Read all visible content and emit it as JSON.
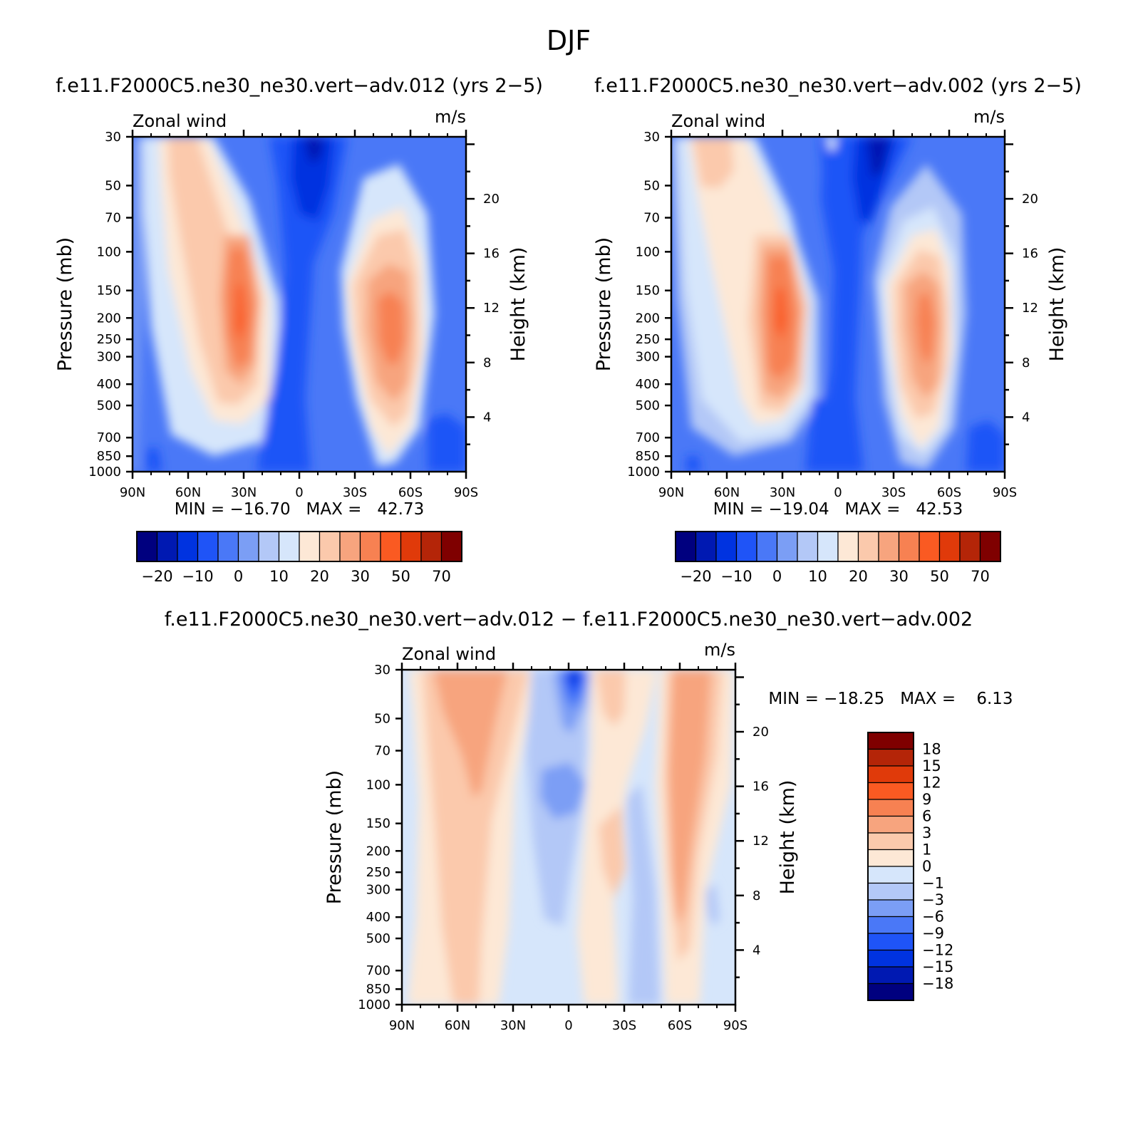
{
  "figure": {
    "title": "DJF"
  },
  "chart_data": [
    {
      "type": "heatmap",
      "title": "f.e11.F2000C5.ne30_ne30.vert−adv.012 (yrs 2−5)",
      "left_label": "Zonal wind",
      "right_label": "m/s",
      "xlabel": "",
      "ylabel": "Pressure (mb)",
      "y2label": "Height (km)",
      "x_ticks": [
        "90N",
        "60N",
        "30N",
        "0",
        "30S",
        "60S",
        "90S"
      ],
      "y_ticks": [
        "30",
        "50",
        "70",
        "100",
        "150",
        "200",
        "250",
        "300",
        "400",
        "500",
        "700",
        "850",
        "1000"
      ],
      "y2_ticks": [
        "20",
        "16",
        "12",
        "8",
        "4"
      ],
      "ylim": [
        1000,
        30
      ],
      "stats": "MIN = −16.70   MAX =   42.73",
      "min": -16.7,
      "max": 42.73,
      "colorbar": {
        "orientation": "horizontal",
        "labels": [
          "−20",
          "−10",
          "0",
          "10",
          "20",
          "30",
          "50",
          "70"
        ]
      }
    },
    {
      "type": "heatmap",
      "title": "f.e11.F2000C5.ne30_ne30.vert−adv.002 (yrs 2−5)",
      "left_label": "Zonal wind",
      "right_label": "m/s",
      "xlabel": "",
      "ylabel": "Pressure (mb)",
      "y2label": "Height (km)",
      "x_ticks": [
        "90N",
        "60N",
        "30N",
        "0",
        "30S",
        "60S",
        "90S"
      ],
      "y_ticks": [
        "30",
        "50",
        "70",
        "100",
        "150",
        "200",
        "250",
        "300",
        "400",
        "500",
        "700",
        "850",
        "1000"
      ],
      "y2_ticks": [
        "20",
        "16",
        "12",
        "8",
        "4"
      ],
      "ylim": [
        1000,
        30
      ],
      "stats": "MIN = −19.04   MAX =   42.53",
      "min": -19.04,
      "max": 42.53,
      "colorbar": {
        "orientation": "horizontal",
        "labels": [
          "−20",
          "−10",
          "0",
          "10",
          "20",
          "30",
          "50",
          "70"
        ]
      }
    },
    {
      "type": "heatmap",
      "title": "f.e11.F2000C5.ne30_ne30.vert−adv.012 − f.e11.F2000C5.ne30_ne30.vert−adv.002",
      "left_label": "Zonal wind",
      "right_label": "m/s",
      "xlabel": "",
      "ylabel": "Pressure (mb)",
      "y2label": "Height (km)",
      "x_ticks": [
        "90N",
        "60N",
        "30N",
        "0",
        "30S",
        "60S",
        "90S"
      ],
      "y_ticks": [
        "30",
        "50",
        "70",
        "100",
        "150",
        "200",
        "250",
        "300",
        "400",
        "500",
        "700",
        "850",
        "1000"
      ],
      "y2_ticks": [
        "20",
        "16",
        "12",
        "8",
        "4"
      ],
      "ylim": [
        1000,
        30
      ],
      "stats": "MIN = −18.25   MAX =    6.13",
      "min": -18.25,
      "max": 6.13,
      "colorbar": {
        "orientation": "vertical",
        "labels": [
          "18",
          "15",
          "12",
          "9",
          "6",
          "3",
          "1",
          "0",
          "−1",
          "−3",
          "−6",
          "−9",
          "−12",
          "−15",
          "−18"
        ]
      }
    }
  ],
  "colors": {
    "palette": [
      "#00007f",
      "#0019b2",
      "#0033e0",
      "#1f54f7",
      "#4a78f7",
      "#7b9ef5",
      "#b3c8f7",
      "#d6e6fb",
      "#fde8d6",
      "#fbc9ac",
      "#f7a47e",
      "#f78152",
      "#fa5a22",
      "#e03a0a",
      "#b42508",
      "#7f0000"
    ]
  }
}
